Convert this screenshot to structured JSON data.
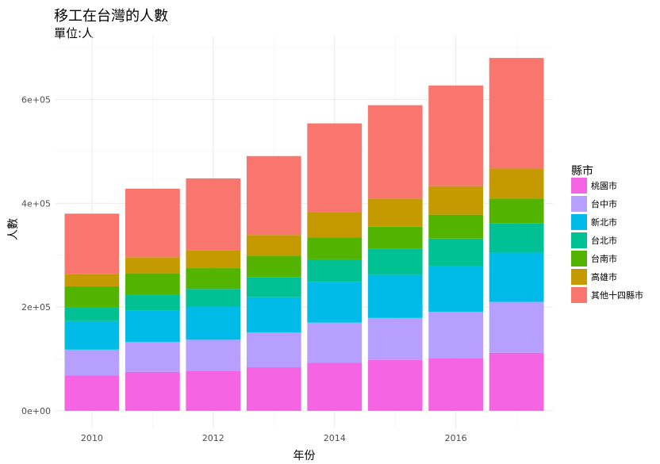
{
  "chart_data": {
    "type": "bar",
    "stacked": true,
    "title": "移工在台灣的人數",
    "subtitle": "單位:人",
    "xlabel": "年份",
    "ylabel": "人數",
    "x": [
      2010,
      2011,
      2012,
      2013,
      2014,
      2015,
      2016,
      2017
    ],
    "xticks": [
      2010,
      2012,
      2014,
      2016
    ],
    "xtick_labels": [
      "2010",
      "2012",
      "2014",
      "2016"
    ],
    "ylim": [
      0,
      700000
    ],
    "yticks": [
      0,
      200000,
      400000,
      600000
    ],
    "ytick_labels": [
      "0e+00",
      "2e+05",
      "4e+05",
      "6e+05"
    ],
    "grid": true,
    "legend_title": "縣市",
    "legend_position": "right",
    "series": [
      {
        "name": "桃園市",
        "color": "#F564E3",
        "values": [
          68000,
          75000,
          77000,
          84000,
          93000,
          98000,
          102000,
          112000
        ]
      },
      {
        "name": "台中市",
        "color": "#B79FFF",
        "values": [
          50000,
          58000,
          60000,
          67000,
          77000,
          81000,
          89000,
          98000
        ]
      },
      {
        "name": "新北市",
        "color": "#00BAE8",
        "values": [
          55000,
          61000,
          64000,
          68000,
          78000,
          83000,
          88000,
          95000
        ]
      },
      {
        "name": "台北市",
        "color": "#00C094",
        "values": [
          27000,
          30000,
          34000,
          39000,
          44000,
          50000,
          53000,
          56000
        ]
      },
      {
        "name": "台南市",
        "color": "#53B400",
        "values": [
          40000,
          41000,
          40000,
          41000,
          42000,
          43000,
          46000,
          48000
        ]
      },
      {
        "name": "高雄市",
        "color": "#C49A00",
        "values": [
          24000,
          31000,
          35000,
          40000,
          49000,
          54000,
          55000,
          58000
        ]
      },
      {
        "name": "其他十四縣市",
        "color": "#F8766D",
        "values": [
          116000,
          132000,
          138000,
          152000,
          171000,
          180000,
          194000,
          213000
        ]
      }
    ],
    "legend_order": [
      "桃園市",
      "台中市",
      "新北市",
      "台北市",
      "台南市",
      "高雄市",
      "其他十四縣市"
    ]
  }
}
